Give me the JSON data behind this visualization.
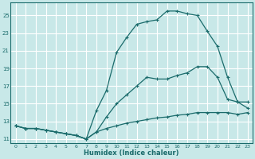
{
  "xlabel": "Humidex (Indice chaleur)",
  "bg_color": "#c8e8e8",
  "grid_color": "#ffffff",
  "line_color": "#1a6b6b",
  "xlim": [
    -0.5,
    23.5
  ],
  "ylim": [
    10.5,
    26.5
  ],
  "xticks": [
    0,
    1,
    2,
    3,
    4,
    5,
    6,
    7,
    8,
    9,
    10,
    11,
    12,
    13,
    14,
    15,
    16,
    17,
    18,
    19,
    20,
    21,
    22,
    23
  ],
  "yticks": [
    11,
    13,
    15,
    17,
    19,
    21,
    23,
    25
  ],
  "line1_x": [
    0,
    1,
    2,
    3,
    4,
    5,
    6,
    7,
    8,
    9,
    10,
    11,
    12,
    13,
    14,
    15,
    16,
    17,
    18,
    19,
    20,
    21,
    22,
    23
  ],
  "line1_y": [
    12.5,
    12.2,
    12.2,
    12.0,
    11.8,
    11.6,
    11.4,
    11.0,
    11.8,
    12.2,
    12.5,
    12.8,
    13.0,
    13.2,
    13.4,
    13.5,
    13.7,
    13.8,
    14.0,
    14.0,
    14.0,
    14.0,
    13.8,
    14.0
  ],
  "line2_x": [
    0,
    1,
    2,
    3,
    4,
    5,
    6,
    7,
    8,
    9,
    10,
    11,
    12,
    13,
    14,
    15,
    16,
    17,
    18,
    19,
    20,
    21,
    22,
    23
  ],
  "line2_y": [
    12.5,
    12.2,
    12.2,
    12.0,
    11.8,
    11.6,
    11.4,
    11.0,
    11.8,
    13.5,
    15.0,
    16.0,
    17.0,
    18.0,
    17.8,
    17.8,
    18.2,
    18.5,
    19.2,
    19.2,
    18.0,
    15.5,
    15.2,
    15.2
  ],
  "line3_x": [
    0,
    1,
    2,
    3,
    4,
    5,
    6,
    7,
    8,
    9,
    10,
    11,
    12,
    13,
    14,
    15,
    16,
    17,
    18,
    19,
    20,
    21,
    22,
    23
  ],
  "line3_y": [
    12.5,
    12.2,
    12.2,
    12.0,
    11.8,
    11.6,
    11.4,
    11.0,
    14.2,
    16.5,
    20.8,
    22.5,
    24.0,
    24.3,
    24.5,
    25.5,
    25.5,
    25.2,
    25.0,
    23.2,
    21.5,
    18.0,
    15.2,
    14.5
  ]
}
